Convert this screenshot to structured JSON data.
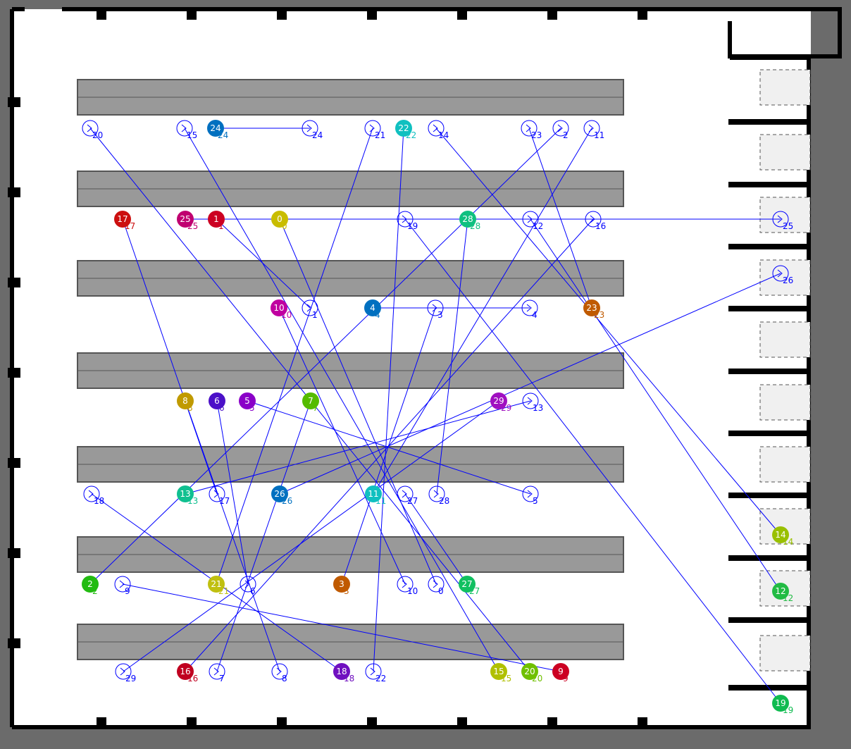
{
  "colors": {
    "background": "#6b6b6b",
    "floor": "#ffffff",
    "wall": "#000000",
    "shelf": "#999999",
    "shelf_border": "#555555",
    "station": "#f0f0f0",
    "path": "#0000ff"
  },
  "robots": [
    {
      "id": "0",
      "color": "#c9bd00",
      "goal": "0"
    },
    {
      "id": "1",
      "color": "#cc0022",
      "goal": "1"
    },
    {
      "id": "2",
      "color": "#22bb11",
      "goal": "2"
    },
    {
      "id": "3",
      "color": "#c05a00",
      "goal": "3"
    },
    {
      "id": "4",
      "color": "#0070c0",
      "goal": "4"
    },
    {
      "id": "5",
      "color": "#8a00c8",
      "goal": "5"
    },
    {
      "id": "6",
      "color": "#4b10c8",
      "goal": "6"
    },
    {
      "id": "7",
      "color": "#55bb00",
      "goal": "7"
    },
    {
      "id": "8",
      "color": "#c09a00",
      "goal": "8"
    },
    {
      "id": "9",
      "color": "#cc0022",
      "goal": "9"
    },
    {
      "id": "10",
      "color": "#c000a0",
      "goal": "10"
    },
    {
      "id": "11",
      "color": "#10c0c0",
      "goal": "11"
    },
    {
      "id": "12",
      "color": "#22bb44",
      "goal": "12"
    },
    {
      "id": "13",
      "color": "#10c090",
      "goal": "13"
    },
    {
      "id": "14",
      "color": "#99c000",
      "goal": "14"
    },
    {
      "id": "15",
      "color": "#b0c000",
      "goal": "15"
    },
    {
      "id": "16",
      "color": "#c00020",
      "goal": "16"
    },
    {
      "id": "17",
      "color": "#cc1010",
      "goal": "17"
    },
    {
      "id": "18",
      "color": "#7010c0",
      "goal": "18"
    },
    {
      "id": "19",
      "color": "#10bb50",
      "goal": "19"
    },
    {
      "id": "20",
      "color": "#70c000",
      "goal": "20"
    },
    {
      "id": "21",
      "color": "#c0c010",
      "goal": "21"
    },
    {
      "id": "22",
      "color": "#10c0c0",
      "goal": "22"
    },
    {
      "id": "23",
      "color": "#c05a00",
      "goal": "23"
    },
    {
      "id": "24",
      "color": "#0070c0",
      "goal": "24"
    },
    {
      "id": "25",
      "color": "#c00070",
      "goal": "25"
    },
    {
      "id": "26",
      "color": "#0070c0",
      "goal": "26"
    },
    {
      "id": "27",
      "color": "#10c060",
      "goal": "27"
    },
    {
      "id": "28",
      "color": "#10c080",
      "goal": "28"
    },
    {
      "id": "29",
      "color": "#a010c0",
      "goal": "29"
    }
  ]
}
